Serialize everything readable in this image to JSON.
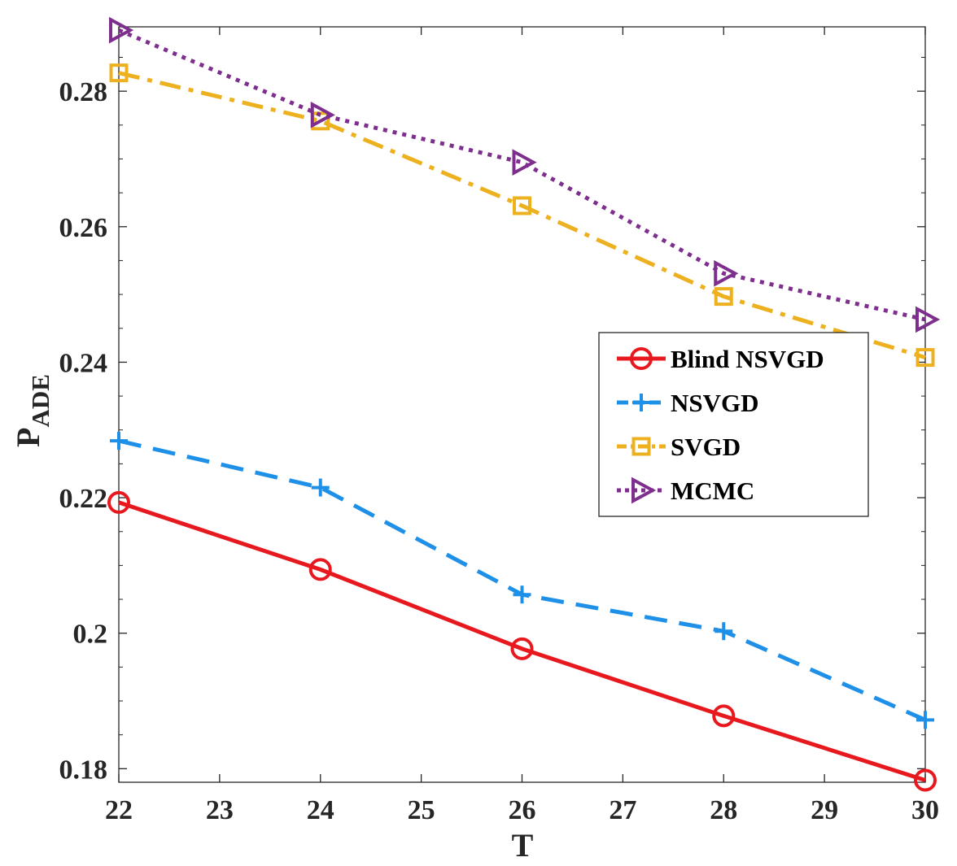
{
  "chart_data": {
    "type": "line",
    "title": "",
    "xlabel": "T",
    "ylabel": {
      "main": "P",
      "subscript": "ADE"
    },
    "xlim": [
      22,
      30
    ],
    "ylim": [
      0.178,
      0.2895
    ],
    "x_ticks": [
      22,
      23,
      24,
      25,
      26,
      27,
      28,
      29,
      30
    ],
    "x_tick_labels": [
      "22",
      "23",
      "24",
      "25",
      "26",
      "27",
      "28",
      "29",
      "30"
    ],
    "y_ticks": [
      0.18,
      0.2,
      0.22,
      0.24,
      0.26,
      0.28
    ],
    "y_tick_labels": [
      "0.18",
      "0.2",
      "0.22",
      "0.24",
      "0.26",
      "0.28"
    ],
    "grid": false,
    "legend_position": "center-right",
    "x": [
      22,
      24,
      26,
      28,
      30
    ],
    "series": [
      {
        "name": "Blind NSVGD",
        "color": "#e8191e",
        "dash": "solid",
        "marker": "circle",
        "values": [
          0.2193,
          0.2094,
          0.1977,
          0.1878,
          0.1783
        ]
      },
      {
        "name": "NSVGD",
        "color": "#1e90e8",
        "dash": "dashed",
        "marker": "plus",
        "values": [
          0.2284,
          0.2215,
          0.2057,
          0.2003,
          0.1872
        ]
      },
      {
        "name": "SVGD",
        "color": "#edb120",
        "dash": "dashdot",
        "marker": "square",
        "values": [
          0.2827,
          0.2756,
          0.2631,
          0.2497,
          0.2407
        ]
      },
      {
        "name": "MCMC",
        "color": "#7e2f8e",
        "dash": "dotted",
        "marker": "triangle-right",
        "values": [
          0.289,
          0.2765,
          0.2695,
          0.2531,
          0.2463
        ]
      }
    ]
  }
}
